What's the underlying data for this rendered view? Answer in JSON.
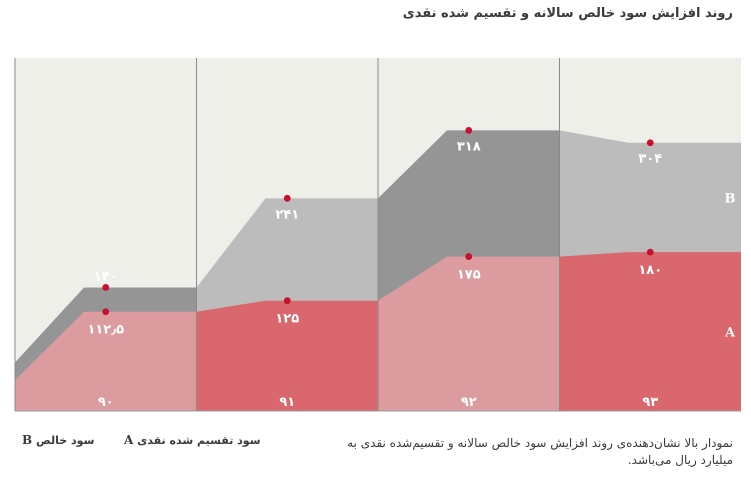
{
  "title": "روند افزایش سود خالص سالانه و تقسیم شده نقدی",
  "note": "نمودار بالا نشان‌دهنده‌ی روند افزایش سود خالص سالانه و تقسیم‌شده نقدی به میلیارد ریال می‌باشد.",
  "legend": [
    {
      "letter": "B",
      "label": "سود خالص"
    },
    {
      "letter": "A",
      "label": "سود تقسیم شده نقدی"
    }
  ],
  "colors": {
    "background": "#efefea",
    "net_profit_light": "#bcbcbc",
    "net_profit_dark": "#959596",
    "dividend_light": "#dc9b9e",
    "dividend_dark": "#d9676d",
    "marker": "#c8102e",
    "divider": "#8a8a8a"
  },
  "chart_data": {
    "type": "area",
    "ylim": [
      0,
      400
    ],
    "grid": false,
    "periods": [
      {
        "year_label": "۹۰",
        "dividend": 112.5,
        "dividend_label": "۱۱۲٫۵",
        "net_profit": 140,
        "net_profit_label": "۱۴۰"
      },
      {
        "year_label": "۹۱",
        "dividend": 125,
        "dividend_label": "۱۲۵",
        "net_profit": 241,
        "net_profit_label": "۲۴۱"
      },
      {
        "year_label": "۹۲",
        "dividend": 175,
        "dividend_label": "۱۷۵",
        "net_profit": 318,
        "net_profit_label": "۳۱۸"
      },
      {
        "year_label": "۹۳",
        "dividend": 180,
        "dividend_label": "۱۸۰",
        "net_profit": 304,
        "net_profit_label": "۳۰۴"
      }
    ],
    "start_values": {
      "dividend": 35,
      "net_profit": 55
    },
    "series": [
      {
        "key": "net_profit",
        "series_label": "B"
      },
      {
        "key": "dividend",
        "series_label": "A"
      }
    ]
  }
}
